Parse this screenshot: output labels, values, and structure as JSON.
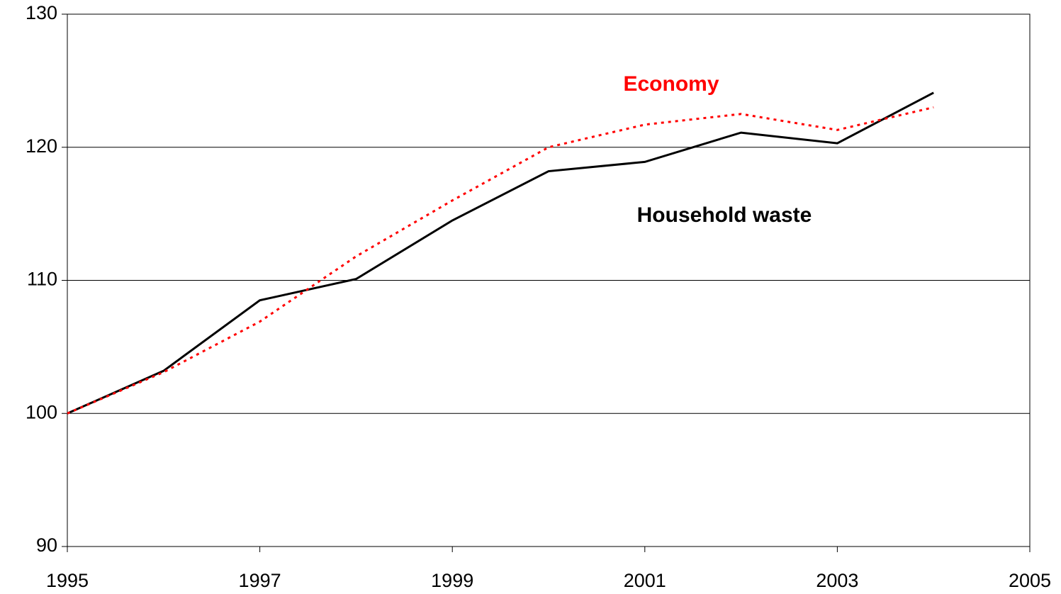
{
  "chart_data": {
    "type": "line",
    "x": [
      1995,
      1996,
      1997,
      1998,
      1999,
      2000,
      2001,
      2002,
      2003,
      2004
    ],
    "series": [
      {
        "name": "Household waste",
        "color": "#000000",
        "dash": false,
        "values": [
          100,
          103.2,
          108.5,
          110.1,
          114.5,
          118.2,
          118.9,
          121.1,
          120.3,
          124.1
        ]
      },
      {
        "name": "Economy",
        "color": "#ff0000",
        "dash": true,
        "values": [
          100,
          103.1,
          106.9,
          111.8,
          116.0,
          120.0,
          121.7,
          122.5,
          121.3,
          123.0
        ]
      }
    ],
    "xlim": [
      1995,
      2005
    ],
    "xticks": [
      1995,
      1997,
      1999,
      2001,
      2003,
      2005
    ],
    "ylim": [
      90,
      130
    ],
    "yticks": [
      90,
      100,
      110,
      120,
      130
    ],
    "grid": true
  }
}
